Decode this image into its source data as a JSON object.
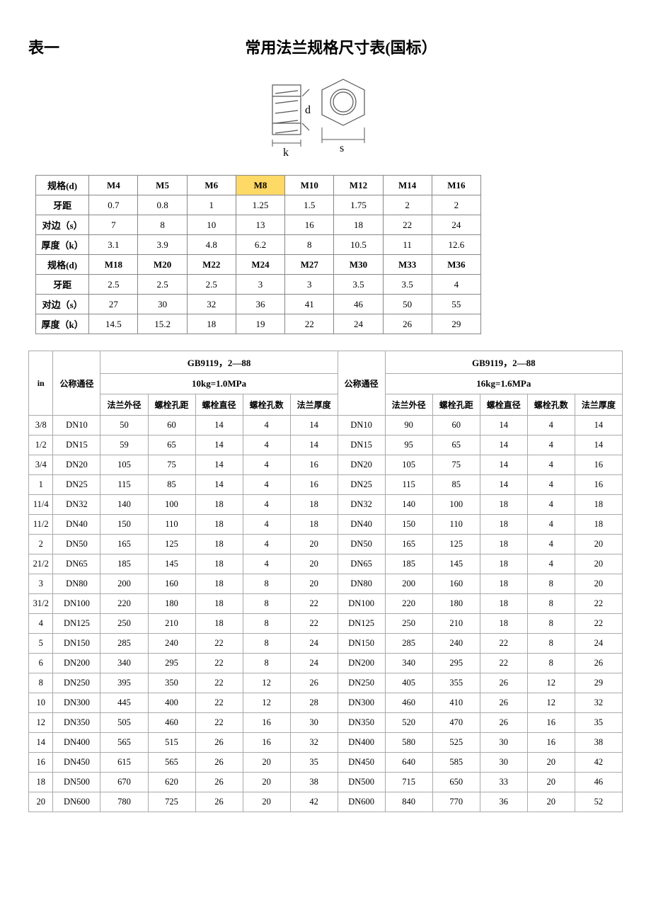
{
  "header": {
    "table_number": "表一",
    "title": "常用法兰规格尺寸表(国标）"
  },
  "diagram": {
    "d_label": "d",
    "k_label": "k",
    "s_label": "s",
    "stroke_color": "#555555",
    "highlight_color": "#ffd966",
    "label_fontsize": 16
  },
  "nut_table": {
    "row_labels": [
      "规格(d)",
      "牙距",
      "对边（s）",
      "厚度（k）"
    ],
    "part1": {
      "specs": [
        "M4",
        "M5",
        "M6",
        "M8",
        "M10",
        "M12",
        "M14",
        "M16"
      ],
      "highlight_spec_index": 3,
      "pitch": [
        "0.7",
        "0.8",
        "1",
        "1.25",
        "1.5",
        "1.75",
        "2",
        "2"
      ],
      "across_flats": [
        "7",
        "8",
        "10",
        "13",
        "16",
        "18",
        "22",
        "24"
      ],
      "thickness": [
        "3.1",
        "3.9",
        "4.8",
        "6.2",
        "8",
        "10.5",
        "11",
        "12.6"
      ]
    },
    "part2": {
      "specs": [
        "M18",
        "M20",
        "M22",
        "M24",
        "M27",
        "M30",
        "M33",
        "M36"
      ],
      "pitch": [
        "2.5",
        "2.5",
        "2.5",
        "3",
        "3",
        "3.5",
        "3.5",
        "4"
      ],
      "across_flats": [
        "27",
        "30",
        "32",
        "36",
        "41",
        "46",
        "50",
        "55"
      ],
      "thickness": [
        "14.5",
        "15.2",
        "18",
        "19",
        "22",
        "24",
        "26",
        "29"
      ]
    }
  },
  "flange_table": {
    "gb_left": "GB9119，2—88",
    "gb_right": "GB9119，2—88",
    "kg_left": "10kg=1.0MPa",
    "kg_right": "16kg=1.6MPa",
    "col_in": "in",
    "col_nominal": "公称通径",
    "cols_left": [
      "法兰外径",
      "螺栓孔距",
      "螺栓直径",
      "螺栓孔数",
      "法兰厚度"
    ],
    "cols_right": [
      "法兰外径",
      "螺栓孔距",
      "螺栓直径",
      "螺栓孔数",
      "法兰厚度"
    ],
    "rows": [
      {
        "in": "3/8",
        "dn_l": "DN10",
        "l": [
          "50",
          "60",
          "14",
          "4",
          "14"
        ],
        "dn_r": "DN10",
        "r": [
          "90",
          "60",
          "14",
          "4",
          "14"
        ]
      },
      {
        "in": "1/2",
        "dn_l": "DN15",
        "l": [
          "59",
          "65",
          "14",
          "4",
          "14"
        ],
        "dn_r": "DN15",
        "r": [
          "95",
          "65",
          "14",
          "4",
          "14"
        ]
      },
      {
        "in": "3/4",
        "dn_l": "DN20",
        "l": [
          "105",
          "75",
          "14",
          "4",
          "16"
        ],
        "dn_r": "DN20",
        "r": [
          "105",
          "75",
          "14",
          "4",
          "16"
        ]
      },
      {
        "in": "1",
        "dn_l": "DN25",
        "l": [
          "115",
          "85",
          "14",
          "4",
          "16"
        ],
        "dn_r": "DN25",
        "r": [
          "115",
          "85",
          "14",
          "4",
          "16"
        ]
      },
      {
        "in": "11/4",
        "dn_l": "DN32",
        "l": [
          "140",
          "100",
          "18",
          "4",
          "18"
        ],
        "dn_r": "DN32",
        "r": [
          "140",
          "100",
          "18",
          "4",
          "18"
        ]
      },
      {
        "in": "11/2",
        "dn_l": "DN40",
        "l": [
          "150",
          "110",
          "18",
          "4",
          "18"
        ],
        "dn_r": "DN40",
        "r": [
          "150",
          "110",
          "18",
          "4",
          "18"
        ]
      },
      {
        "in": "2",
        "dn_l": "DN50",
        "l": [
          "165",
          "125",
          "18",
          "4",
          "20"
        ],
        "dn_r": "DN50",
        "r": [
          "165",
          "125",
          "18",
          "4",
          "20"
        ]
      },
      {
        "in": "21/2",
        "dn_l": "DN65",
        "l": [
          "185",
          "145",
          "18",
          "4",
          "20"
        ],
        "dn_r": "DN65",
        "r": [
          "185",
          "145",
          "18",
          "4",
          "20"
        ]
      },
      {
        "in": "3",
        "dn_l": "DN80",
        "l": [
          "200",
          "160",
          "18",
          "8",
          "20"
        ],
        "dn_r": "DN80",
        "r": [
          "200",
          "160",
          "18",
          "8",
          "20"
        ]
      },
      {
        "in": "31/2",
        "dn_l": "DN100",
        "l": [
          "220",
          "180",
          "18",
          "8",
          "22"
        ],
        "dn_r": "DN100",
        "r": [
          "220",
          "180",
          "18",
          "8",
          "22"
        ]
      },
      {
        "in": "4",
        "dn_l": "DN125",
        "l": [
          "250",
          "210",
          "18",
          "8",
          "22"
        ],
        "dn_r": "DN125",
        "r": [
          "250",
          "210",
          "18",
          "8",
          "22"
        ]
      },
      {
        "in": "5",
        "dn_l": "DN150",
        "l": [
          "285",
          "240",
          "22",
          "8",
          "24"
        ],
        "dn_r": "DN150",
        "r": [
          "285",
          "240",
          "22",
          "8",
          "24"
        ]
      },
      {
        "in": "6",
        "dn_l": "DN200",
        "l": [
          "340",
          "295",
          "22",
          "8",
          "24"
        ],
        "dn_r": "DN200",
        "r": [
          "340",
          "295",
          "22",
          "8",
          "26"
        ]
      },
      {
        "in": "8",
        "dn_l": "DN250",
        "l": [
          "395",
          "350",
          "22",
          "12",
          "26"
        ],
        "dn_r": "DN250",
        "r": [
          "405",
          "355",
          "26",
          "12",
          "29"
        ]
      },
      {
        "in": "10",
        "dn_l": "DN300",
        "l": [
          "445",
          "400",
          "22",
          "12",
          "28"
        ],
        "dn_r": "DN300",
        "r": [
          "460",
          "410",
          "26",
          "12",
          "32"
        ]
      },
      {
        "in": "12",
        "dn_l": "DN350",
        "l": [
          "505",
          "460",
          "22",
          "16",
          "30"
        ],
        "dn_r": "DN350",
        "r": [
          "520",
          "470",
          "26",
          "16",
          "35"
        ]
      },
      {
        "in": "14",
        "dn_l": "DN400",
        "l": [
          "565",
          "515",
          "26",
          "16",
          "32"
        ],
        "dn_r": "DN400",
        "r": [
          "580",
          "525",
          "30",
          "16",
          "38"
        ]
      },
      {
        "in": "16",
        "dn_l": "DN450",
        "l": [
          "615",
          "565",
          "26",
          "20",
          "35"
        ],
        "dn_r": "DN450",
        "r": [
          "640",
          "585",
          "30",
          "20",
          "42"
        ]
      },
      {
        "in": "18",
        "dn_l": "DN500",
        "l": [
          "670",
          "620",
          "26",
          "20",
          "38"
        ],
        "dn_r": "DN500",
        "r": [
          "715",
          "650",
          "33",
          "20",
          "46"
        ]
      },
      {
        "in": "20",
        "dn_l": "DN600",
        "l": [
          "780",
          "725",
          "26",
          "20",
          "42"
        ],
        "dn_r": "DN600",
        "r": [
          "840",
          "770",
          "36",
          "20",
          "52"
        ]
      }
    ]
  }
}
